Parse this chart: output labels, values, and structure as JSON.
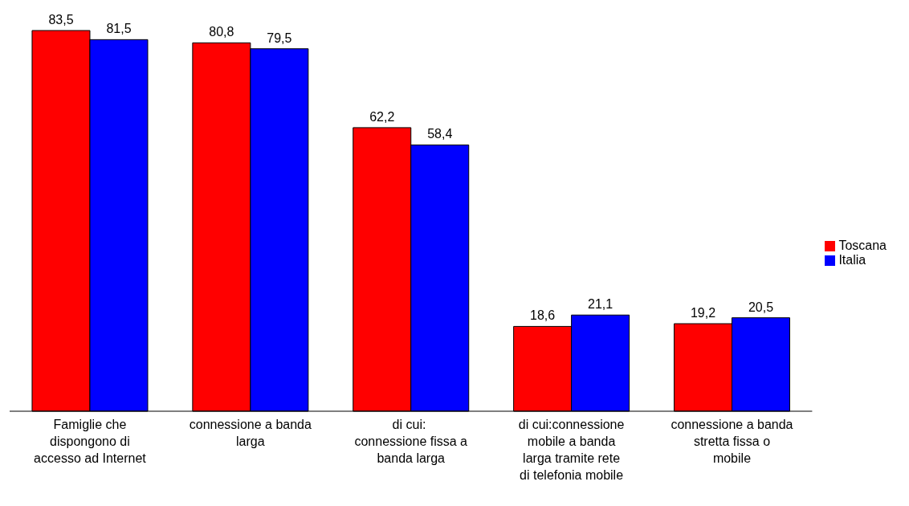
{
  "chart_data": {
    "type": "bar",
    "categories": [
      "Famiglie che dispongono di accesso ad Internet",
      "connessione a banda larga",
      "di cui:  connessione fissa a banda larga",
      "di cui:connessione mobile a banda larga tramite rete di telefonia mobile",
      "connessione a banda stretta fissa o mobile"
    ],
    "series": [
      {
        "name": "Toscana",
        "color": "#ff0000",
        "values": [
          83.5,
          80.8,
          62.2,
          18.6,
          19.2
        ],
        "value_labels": [
          "83,5",
          "80,8",
          "62,2",
          "18,6",
          "19,2"
        ]
      },
      {
        "name": "Italia",
        "color": "#0000ff",
        "values": [
          81.5,
          79.5,
          58.4,
          21.1,
          20.5
        ],
        "value_labels": [
          "81,5",
          "79,5",
          "58,4",
          "21,1",
          "20,5"
        ]
      }
    ],
    "legend": "right",
    "grid": false
  }
}
